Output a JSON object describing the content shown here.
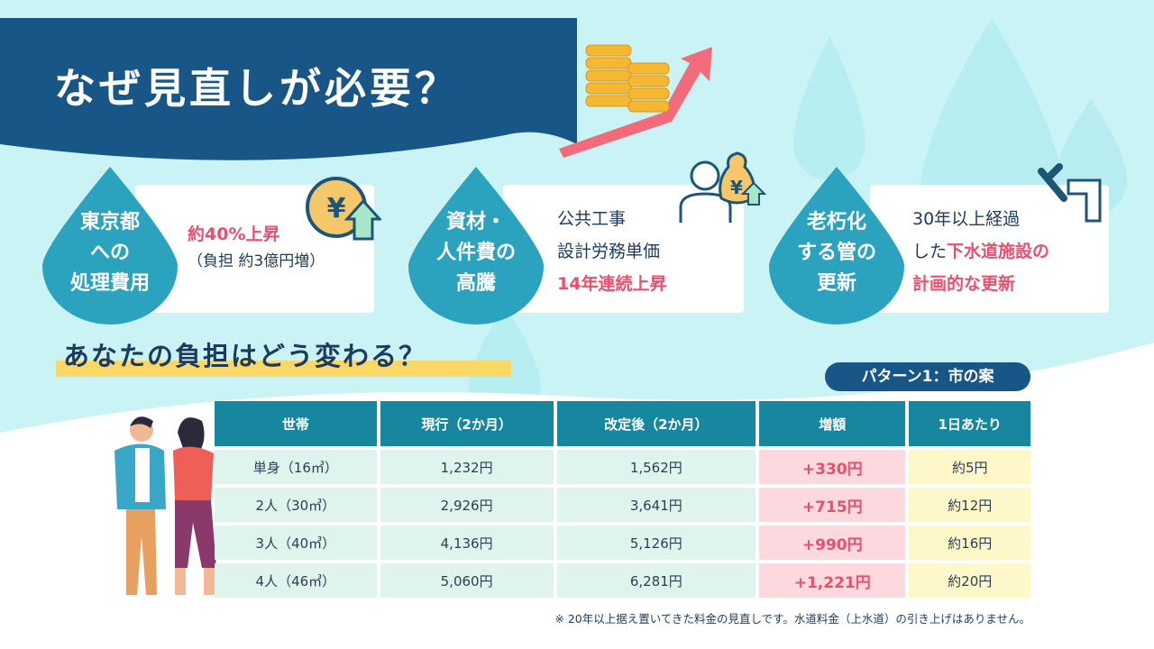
{
  "header": {
    "title": "なぜ見直しが必要？"
  },
  "reasons": [
    {
      "drop": [
        "東京都",
        "への",
        "処理費用"
      ],
      "lines": [
        {
          "text": "約40%上昇",
          "highlight": true
        },
        {
          "text": "（負担 約3億円増）",
          "highlight": false
        }
      ],
      "icon": "yen-coin-up-icon"
    },
    {
      "drop": [
        "資材・",
        "人件費の",
        "高騰"
      ],
      "lines": [
        {
          "text": "公共工事",
          "highlight": false
        },
        {
          "text": "設計労務単価",
          "highlight": false
        },
        {
          "text": "14年連続上昇",
          "highlight": true
        }
      ],
      "icon": "person-money-bag-icon"
    },
    {
      "drop": [
        "老朽化",
        "する管の",
        "更新"
      ],
      "lines_a": "30年以上経過",
      "line2_pre": "した",
      "line2_hl": "下水道施設の",
      "line3_hl": "計画的な更新",
      "icon": "wrench-pipe-icon"
    }
  ],
  "section": {
    "title": "あなたの負担はどう変わる？",
    "pattern_badge": "パターン1：市の案"
  },
  "table": {
    "headers": [
      "世帯",
      "現行（2か月）",
      "改定後（2か月）",
      "増額",
      "1日あたり"
    ],
    "rows": [
      [
        "単身（16㎥）",
        "1,232円",
        "1,562円",
        "+330円",
        "約5円"
      ],
      [
        "2人（30㎥）",
        "2,926円",
        "3,641円",
        "+715円",
        "約12円"
      ],
      [
        "3人（40㎥）",
        "4,136円",
        "5,126円",
        "+990円",
        "約16円"
      ],
      [
        "4人（46㎥）",
        "5,060円",
        "6,281円",
        "+1,221円",
        "約20円"
      ]
    ]
  },
  "footnote": "※ 20年以上据え置いてきた料金の見直しです。水道料金（上水道）の引き上げはありません。",
  "colors": {
    "banner": "#175686",
    "teal": "#2ba3bf",
    "header": "#16879e",
    "accent": "#ee4d6b",
    "highlight": "#fbd866"
  }
}
